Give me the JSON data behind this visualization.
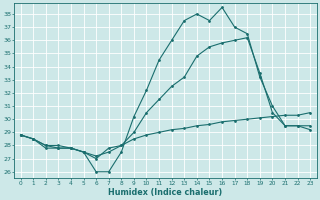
{
  "bg_color": "#cde8e8",
  "grid_color": "#ffffff",
  "line_color": "#1a6e6e",
  "xlabel": "Humidex (Indice chaleur)",
  "xlim": [
    -0.5,
    23.5
  ],
  "ylim": [
    25.5,
    38.8
  ],
  "yticks": [
    26,
    27,
    28,
    29,
    30,
    31,
    32,
    33,
    34,
    35,
    36,
    37,
    38
  ],
  "xticks": [
    0,
    1,
    2,
    3,
    4,
    5,
    6,
    7,
    8,
    9,
    10,
    11,
    12,
    13,
    14,
    15,
    16,
    17,
    18,
    19,
    20,
    21,
    22,
    23
  ],
  "line1_x": [
    0,
    1,
    2,
    3,
    4,
    5,
    6,
    7,
    8,
    9,
    10,
    11,
    12,
    13,
    14,
    15,
    16,
    17,
    18,
    19,
    20,
    21,
    22,
    23
  ],
  "line1_y": [
    28.8,
    28.5,
    28.0,
    27.8,
    27.8,
    27.5,
    27.2,
    27.5,
    28.0,
    28.5,
    28.8,
    29.0,
    29.2,
    29.3,
    29.5,
    29.6,
    29.8,
    29.9,
    30.0,
    30.1,
    30.2,
    30.3,
    30.3,
    30.5
  ],
  "line2_x": [
    0,
    1,
    2,
    3,
    4,
    5,
    6,
    7,
    8,
    9,
    10,
    11,
    12,
    13,
    14,
    15,
    16,
    17,
    18,
    19,
    20,
    21,
    22,
    23
  ],
  "line2_y": [
    28.8,
    28.5,
    27.8,
    27.8,
    27.8,
    27.5,
    26.0,
    26.0,
    27.5,
    30.2,
    32.2,
    34.5,
    36.0,
    37.5,
    38.0,
    37.5,
    38.5,
    37.0,
    36.5,
    33.2,
    31.0,
    29.5,
    29.5,
    29.5
  ],
  "line3_x": [
    0,
    1,
    2,
    3,
    4,
    5,
    6,
    7,
    8,
    9,
    10,
    11,
    12,
    13,
    14,
    15,
    16,
    17,
    18,
    19,
    20,
    21,
    22,
    23
  ],
  "line3_y": [
    28.8,
    28.5,
    28.0,
    28.0,
    27.8,
    27.5,
    27.0,
    27.8,
    28.0,
    29.0,
    30.5,
    31.5,
    32.5,
    33.2,
    34.8,
    35.5,
    35.8,
    36.0,
    36.2,
    33.5,
    30.5,
    29.5,
    29.5,
    29.2
  ]
}
